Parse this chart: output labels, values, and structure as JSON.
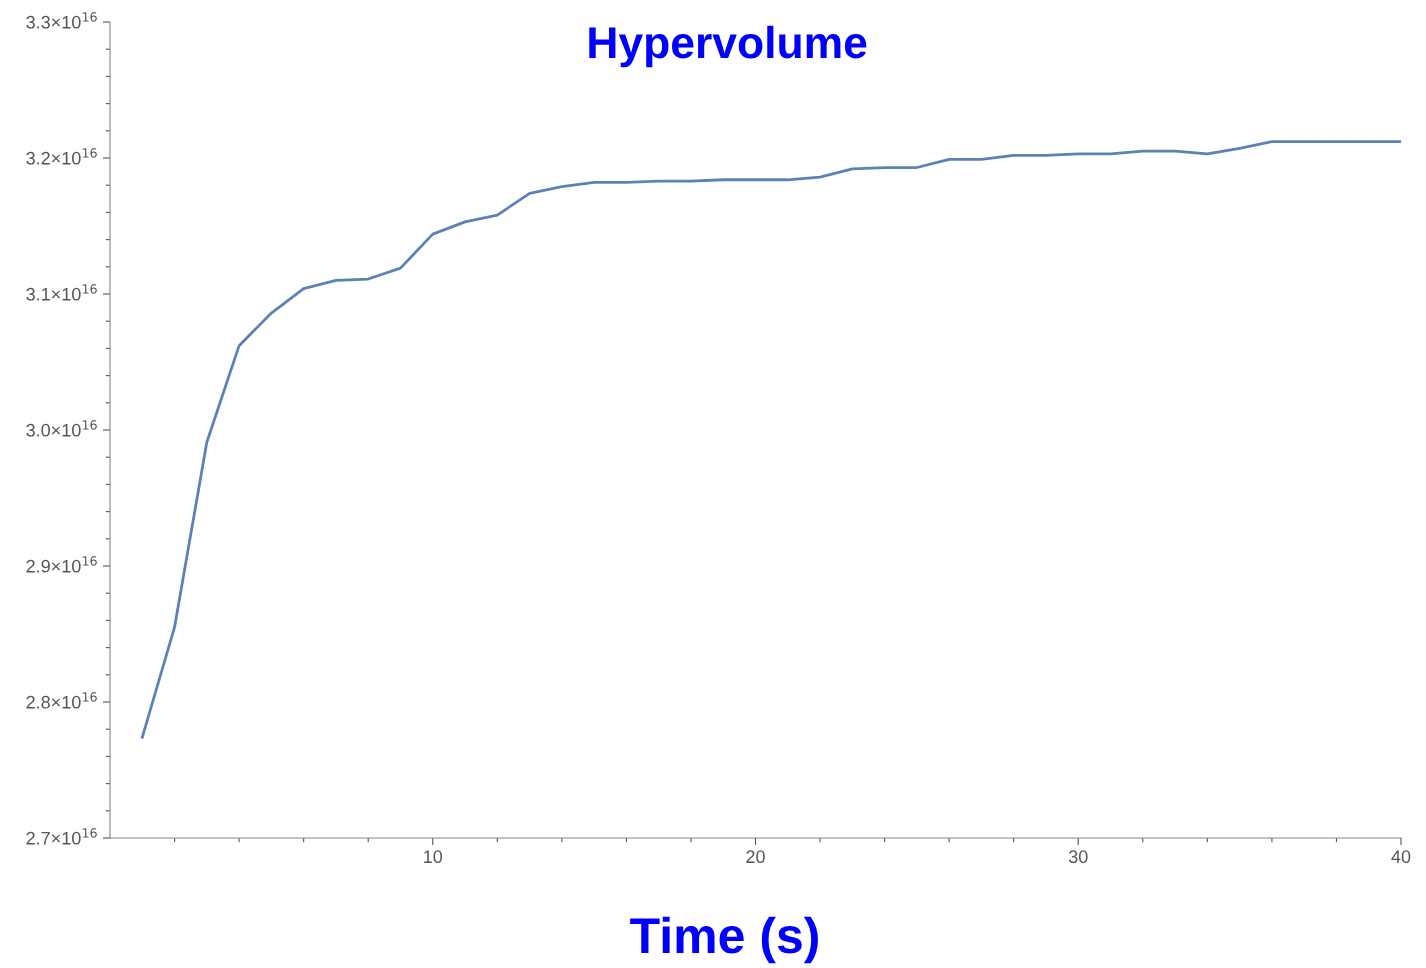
{
  "chart_data": {
    "type": "line",
    "title": "Hypervolume",
    "xlabel": "Time (s)",
    "x": [
      1,
      2,
      3,
      4,
      5,
      6,
      7,
      8,
      9,
      10,
      11,
      12,
      13,
      14,
      15,
      16,
      17,
      18,
      19,
      20,
      21,
      22,
      23,
      24,
      25,
      26,
      27,
      28,
      29,
      30,
      31,
      32,
      33,
      34,
      35,
      36,
      37,
      38,
      39,
      40
    ],
    "series": [
      {
        "color": "#5e81b5",
        "values": [
          2.774e+16,
          2.855e+16,
          2.991e+16,
          3.062e+16,
          3.086e+16,
          3.104e+16,
          3.11e+16,
          3.111e+16,
          3.119e+16,
          3.144e+16,
          3.153e+16,
          3.158e+16,
          3.174e+16,
          3.179e+16,
          3.182e+16,
          3.182e+16,
          3.183e+16,
          3.183e+16,
          3.184e+16,
          3.184e+16,
          3.184e+16,
          3.186e+16,
          3.192e+16,
          3.193e+16,
          3.193e+16,
          3.199e+16,
          3.199e+16,
          3.202e+16,
          3.202e+16,
          3.203e+16,
          3.203e+16,
          3.205e+16,
          3.205e+16,
          3.203e+16,
          3.207e+16,
          3.212e+16,
          3.212e+16,
          3.212e+16,
          3.212e+16,
          3.212e+16
        ]
      }
    ],
    "xlim": [
      0,
      40
    ],
    "ylim": [
      2.7e+16,
      3.3e+16
    ],
    "xticks": [
      {
        "value": 2,
        "label": null
      },
      {
        "value": 4,
        "label": null
      },
      {
        "value": 6,
        "label": null
      },
      {
        "value": 8,
        "label": null
      },
      10,
      {
        "value": 12,
        "label": null
      },
      {
        "value": 14,
        "label": null
      },
      {
        "value": 16,
        "label": null
      },
      {
        "value": 18,
        "label": null
      },
      20,
      {
        "value": 22,
        "label": null
      },
      {
        "value": 24,
        "label": null
      },
      {
        "value": 26,
        "label": null
      },
      {
        "value": 28,
        "label": null
      },
      30,
      {
        "value": 32,
        "label": null
      },
      {
        "value": 34,
        "label": null
      },
      {
        "value": 36,
        "label": null
      },
      {
        "value": 38,
        "label": null
      },
      40
    ],
    "yticks": [
      {
        "value": 2.7e+16,
        "label": "2.7×10$^{16}$"
      },
      {
        "value": 2.72e+16,
        "label": null
      },
      {
        "value": 2.74e+16,
        "label": null
      },
      {
        "value": 2.76e+16,
        "label": null
      },
      {
        "value": 2.78e+16,
        "label": null
      },
      {
        "value": 2.8e+16,
        "label": "2.8×10$^{16}$"
      },
      {
        "value": 2.82e+16,
        "label": null
      },
      {
        "value": 2.84e+16,
        "label": null
      },
      {
        "value": 2.86e+16,
        "label": null
      },
      {
        "value": 2.88e+16,
        "label": null
      },
      {
        "value": 2.9e+16,
        "label": "2.9×10$^{16}$"
      },
      {
        "value": 2.92e+16,
        "label": null
      },
      {
        "value": 2.94e+16,
        "label": null
      },
      {
        "value": 2.96e+16,
        "label": null
      },
      {
        "value": 2.98e+16,
        "label": null
      },
      {
        "value": 3e+16,
        "label": "3.0×10$^{16}$"
      },
      {
        "value": 3.02e+16,
        "label": null
      },
      {
        "value": 3.04e+16,
        "label": null
      },
      {
        "value": 3.06e+16,
        "label": null
      },
      {
        "value": 3.08e+16,
        "label": null
      },
      {
        "value": 3.1e+16,
        "label": "3.1×10$^{16}$"
      },
      {
        "value": 3.12e+16,
        "label": null
      },
      {
        "value": 3.14e+16,
        "label": null
      },
      {
        "value": 3.16e+16,
        "label": null
      },
      {
        "value": 3.18e+16,
        "label": null
      },
      {
        "value": 3.2e+16,
        "label": "3.2×10$^{16}$"
      },
      {
        "value": 3.22e+16,
        "label": null
      },
      {
        "value": 3.24e+16,
        "label": null
      },
      {
        "value": 3.26e+16,
        "label": null
      },
      {
        "value": 3.28e+16,
        "label": null
      },
      {
        "value": 3.3e+16,
        "label": "3.3×10$^{16}$"
      }
    ],
    "grid": false,
    "marker": "none",
    "line_style": "solid"
  }
}
